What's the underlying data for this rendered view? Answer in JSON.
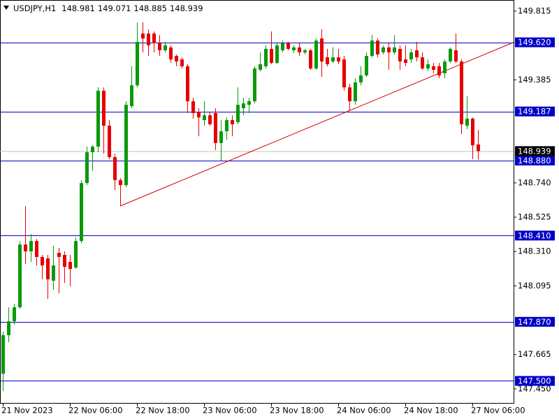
{
  "chart_data": {
    "type": "candlestick",
    "symbol_label": "USDJPY,H1",
    "categories": [
      "21 Nov 2023",
      null,
      null,
      null,
      null,
      null,
      null,
      null,
      null,
      null,
      null,
      null,
      "22 Nov 06:00",
      null,
      null,
      null,
      null,
      null,
      null,
      null,
      null,
      null,
      null,
      null,
      "22 Nov 18:00",
      null,
      null,
      null,
      null,
      null,
      null,
      null,
      null,
      null,
      null,
      null,
      "23 Nov 06:00",
      null,
      null,
      null,
      null,
      null,
      null,
      null,
      null,
      null,
      null,
      null,
      "23 Nov 18:00",
      null,
      null,
      null,
      null,
      null,
      null,
      null,
      null,
      null,
      null,
      null,
      "24 Nov 06:00",
      null,
      null,
      null,
      null,
      null,
      null,
      null,
      null,
      null,
      null,
      null,
      "24 Nov 18:00",
      null,
      null,
      null,
      null,
      null,
      null,
      null,
      null,
      null,
      null,
      null,
      "27 Nov 06:00",
      null
    ],
    "open": [
      147.545,
      147.786,
      147.873,
      147.961,
      148.354,
      148.311,
      148.376,
      148.276,
      148.267,
      148.127,
      148.302,
      148.289,
      148.245,
      148.21,
      148.376,
      148.739,
      148.932,
      148.967,
      149.317,
      149.098,
      148.901,
      148.757,
      148.726,
      149.22,
      149.351,
      149.675,
      149.675,
      149.675,
      149.614,
      149.57,
      149.588,
      149.535,
      149.513,
      149.47,
      149.251,
      149.185,
      149.133,
      149.163,
      149.177,
      148.989,
      149.063,
      149.133,
      149.12,
      149.207,
      149.229,
      149.251,
      149.448,
      149.47,
      149.579,
      149.491,
      149.57,
      149.614,
      149.57,
      149.588,
      149.557,
      149.57,
      149.456,
      149.644,
      149.526,
      149.5,
      149.526,
      149.513,
      149.338,
      149.251,
      149.369,
      149.413,
      149.535,
      149.631,
      149.557,
      149.588,
      149.557,
      149.579,
      149.513,
      149.513,
      149.57,
      149.526,
      149.456,
      149.47,
      149.47,
      149.426,
      149.5,
      149.57,
      149.5,
      149.098,
      149.142,
      148.981
    ],
    "high": [
      147.808,
      147.961,
      147.983,
      148.376,
      148.595,
      148.42,
      148.389,
      148.289,
      148.289,
      148.346,
      148.333,
      148.311,
      148.289,
      148.398,
      148.757,
      148.967,
      148.975,
      149.338,
      149.338,
      149.133,
      148.923,
      148.77,
      149.251,
      149.47,
      149.745,
      149.745,
      149.701,
      149.688,
      149.666,
      149.623,
      149.601,
      149.544,
      149.526,
      149.483,
      149.273,
      149.207,
      149.251,
      149.185,
      149.207,
      149.133,
      149.15,
      149.163,
      149.338,
      149.273,
      149.273,
      149.47,
      149.557,
      149.601,
      149.688,
      149.614,
      149.631,
      149.623,
      149.601,
      149.614,
      149.579,
      149.579,
      149.644,
      149.701,
      149.579,
      149.588,
      149.579,
      149.535,
      149.36,
      149.395,
      149.47,
      149.557,
      149.666,
      149.644,
      149.601,
      149.614,
      149.666,
      149.601,
      149.601,
      149.579,
      149.623,
      149.557,
      149.513,
      149.491,
      149.491,
      149.513,
      149.588,
      149.675,
      149.513,
      149.282,
      149.15,
      149.071
    ],
    "low": [
      147.436,
      147.742,
      147.852,
      147.952,
      148.232,
      148.245,
      148.223,
      148.136,
      148.013,
      148.07,
      148.048,
      148.114,
      148.092,
      148.201,
      148.363,
      148.726,
      148.814,
      148.932,
      148.923,
      148.888,
      148.696,
      148.595,
      148.713,
      149.207,
      149.338,
      149.557,
      149.535,
      149.557,
      149.535,
      149.557,
      149.491,
      149.47,
      149.456,
      149.177,
      149.142,
      149.032,
      149.098,
      149.098,
      148.945,
      148.879,
      149.01,
      149.032,
      149.107,
      149.163,
      149.177,
      149.238,
      149.439,
      149.456,
      149.483,
      149.483,
      149.557,
      149.57,
      149.553,
      149.535,
      149.544,
      149.448,
      149.448,
      149.404,
      149.47,
      149.491,
      149.483,
      149.317,
      149.194,
      149.229,
      149.351,
      149.404,
      149.526,
      149.526,
      149.544,
      149.448,
      149.544,
      149.448,
      149.47,
      149.491,
      149.5,
      149.448,
      149.439,
      149.426,
      149.395,
      149.395,
      149.491,
      149.491,
      149.045,
      149.076,
      148.888,
      148.885
    ],
    "close": [
      147.786,
      147.873,
      147.961,
      148.354,
      148.311,
      148.376,
      148.276,
      148.223,
      148.136,
      148.223,
      148.276,
      148.214,
      148.201,
      148.376,
      148.739,
      148.932,
      148.967,
      149.317,
      149.098,
      148.901,
      148.757,
      148.726,
      149.229,
      149.351,
      149.623,
      149.644,
      149.601,
      149.614,
      149.57,
      149.601,
      149.513,
      149.5,
      149.47,
      149.251,
      149.177,
      149.15,
      149.163,
      149.107,
      148.989,
      149.063,
      149.133,
      149.107,
      149.229,
      149.238,
      149.251,
      149.456,
      149.483,
      149.579,
      149.491,
      149.601,
      149.614,
      149.579,
      149.588,
      149.557,
      149.57,
      149.456,
      149.631,
      149.5,
      149.483,
      149.526,
      149.5,
      149.338,
      149.251,
      149.369,
      149.413,
      149.535,
      149.631,
      149.544,
      149.588,
      149.557,
      149.588,
      149.5,
      149.491,
      149.557,
      149.526,
      149.456,
      149.483,
      149.448,
      149.413,
      149.5,
      149.579,
      149.5,
      149.107,
      149.142,
      148.975,
      148.939
    ],
    "up_color": "#0a9a0a",
    "down_color": "#e60000",
    "ylim": [
      147.362,
      149.885
    ],
    "yticks": [
      149.815,
      149.385,
      {
        "value": 148.74,
        "label": "148.740"
      },
      148.525,
      {
        "value": 148.31,
        "label": "148.310"
      },
      148.095,
      147.665,
      {
        "value": 147.45,
        "label": "147.450"
      }
    ],
    "levels": [
      {
        "value": 149.62,
        "label": "149.620"
      },
      149.187,
      {
        "value": 148.88,
        "label": "148.880"
      },
      {
        "value": 148.41,
        "label": "148.410"
      },
      {
        "value": 147.87,
        "label": "147.870"
      },
      {
        "value": 147.5,
        "label": "147.500"
      }
    ],
    "level_color": "#0000c8",
    "price_line_color": "#c0c0c0",
    "trendline": {
      "color": "#d40000",
      "from": [
        21,
        148.595
      ],
      "to": [
        91.4,
        149.62
      ]
    }
  }
}
